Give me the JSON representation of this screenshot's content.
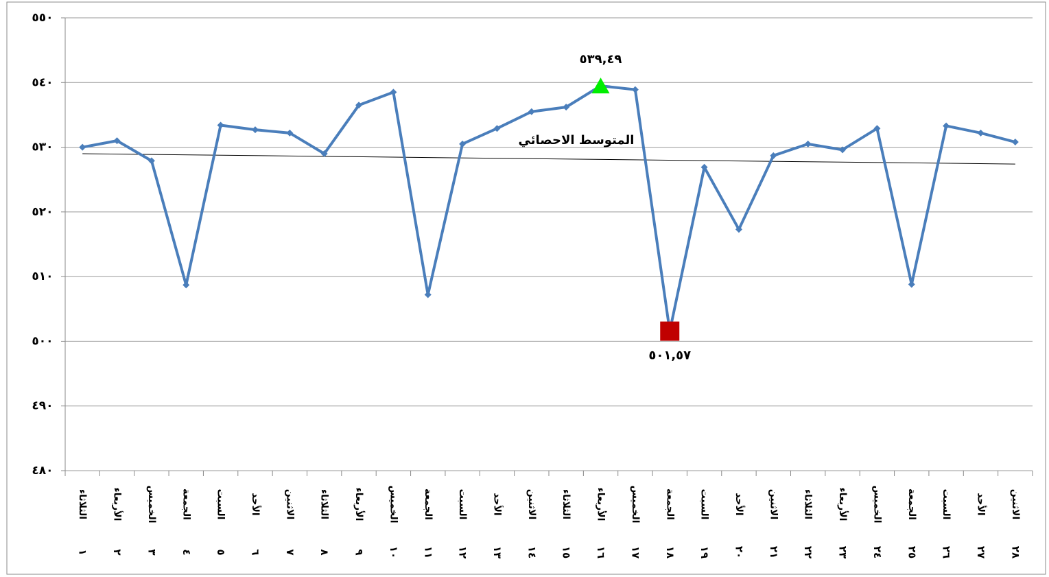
{
  "chart_data": {
    "type": "line",
    "categories": [
      "الثلاثاء",
      "الأربعاء",
      "الخميس",
      "الجمعة",
      "السبت",
      "الأحد",
      "الاثنين",
      "الثلاثاء",
      "الأربعاء",
      "الخميس",
      "الجمعة",
      "السبت",
      "الأحد",
      "الاثنين",
      "الثلاثاء",
      "الأربعاء",
      "الخميس",
      "الجمعة",
      "السبت",
      "الأحد",
      "الاثنين",
      "الثلاثاء",
      "الأربعاء",
      "الخميس",
      "الجمعة",
      "السبت",
      "الأحد",
      "الاثنين"
    ],
    "day_numbers": [
      "١",
      "٢",
      "٣",
      "٤",
      "٥",
      "٦",
      "٧",
      "٨",
      "٩",
      "١٠",
      "١١",
      "١٢",
      "١٣",
      "١٤",
      "١٥",
      "١٦",
      "١٧",
      "١٨",
      "١٩",
      "٢٠",
      "٢١",
      "٢٢",
      "٢٣",
      "٢٤",
      "٢٥",
      "٢٦",
      "٢٧",
      "٢٨"
    ],
    "series": [
      {
        "color": "#4a7ebb",
        "values": [
          530.0,
          531.0,
          527.9,
          508.7,
          533.4,
          532.7,
          532.2,
          529.0,
          536.5,
          538.5,
          507.2,
          530.5,
          532.9,
          535.5,
          536.2,
          539.49,
          538.9,
          501.57,
          526.9,
          517.3,
          528.7,
          530.5,
          529.6,
          532.9,
          508.8,
          533.3,
          532.2,
          530.8
        ]
      }
    ],
    "ylim": [
      480,
      550
    ],
    "yticks": [
      {
        "value": 480,
        "label": "٤٨٠"
      },
      {
        "value": 490,
        "label": "٤٩٠"
      },
      {
        "value": 500,
        "label": "٥٠٠"
      },
      {
        "value": 510,
        "label": "٥١٠"
      },
      {
        "value": 520,
        "label": "٥٢٠"
      },
      {
        "value": 530,
        "label": "٥٣٠"
      },
      {
        "value": 540,
        "label": "٥٤٠"
      },
      {
        "value": 550,
        "label": "٥٥٠"
      }
    ],
    "grid": true,
    "trendline": {
      "label": "المتوسط الاحصائي",
      "values": [
        529.0,
        527.4
      ],
      "color": "#000000"
    },
    "max_marker": {
      "index": 15,
      "label": "٥٣٩,٤٩",
      "color": "#00ee00"
    },
    "min_marker": {
      "index": 17,
      "label": "٥٠١,٥٧",
      "color": "#c00000"
    }
  }
}
